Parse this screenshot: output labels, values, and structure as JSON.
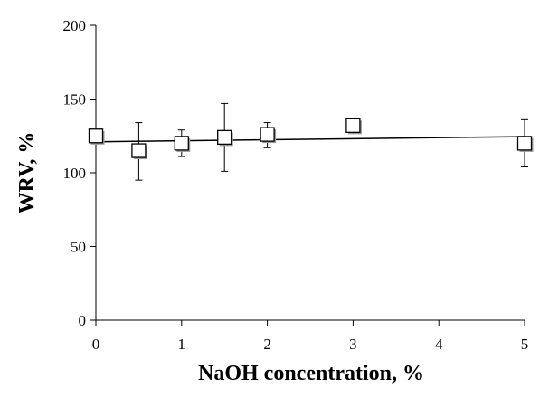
{
  "chart_data": {
    "type": "scatter",
    "title": "",
    "xlabel": "NaOH concentration, %",
    "ylabel": "WRV, %",
    "xlim": [
      0,
      5
    ],
    "ylim": [
      0,
      200
    ],
    "xticks": [
      0,
      1,
      2,
      3,
      4,
      5
    ],
    "yticks": [
      0,
      50,
      100,
      150,
      200
    ],
    "grid": false,
    "legend": "none",
    "series": [
      {
        "marker": "open-square",
        "color": "#000000",
        "points": [
          {
            "x": 0,
            "y": 125,
            "err_low": null,
            "err_high": null
          },
          {
            "x": 0.5,
            "y": 115,
            "err_low": 95,
            "err_high": 134
          },
          {
            "x": 1,
            "y": 120,
            "err_low": 111,
            "err_high": 129
          },
          {
            "x": 1.5,
            "y": 124,
            "err_low": 101,
            "err_high": 147
          },
          {
            "x": 2,
            "y": 126,
            "err_low": 117,
            "err_high": 134
          },
          {
            "x": 3,
            "y": 132,
            "err_low": null,
            "err_high": null
          },
          {
            "x": 5,
            "y": 120,
            "err_low": 104,
            "err_high": 136
          }
        ]
      }
    ],
    "trendline": {
      "type": "linear",
      "x": [
        0,
        5
      ],
      "y": [
        121,
        124.5
      ],
      "color": "#000000"
    }
  }
}
